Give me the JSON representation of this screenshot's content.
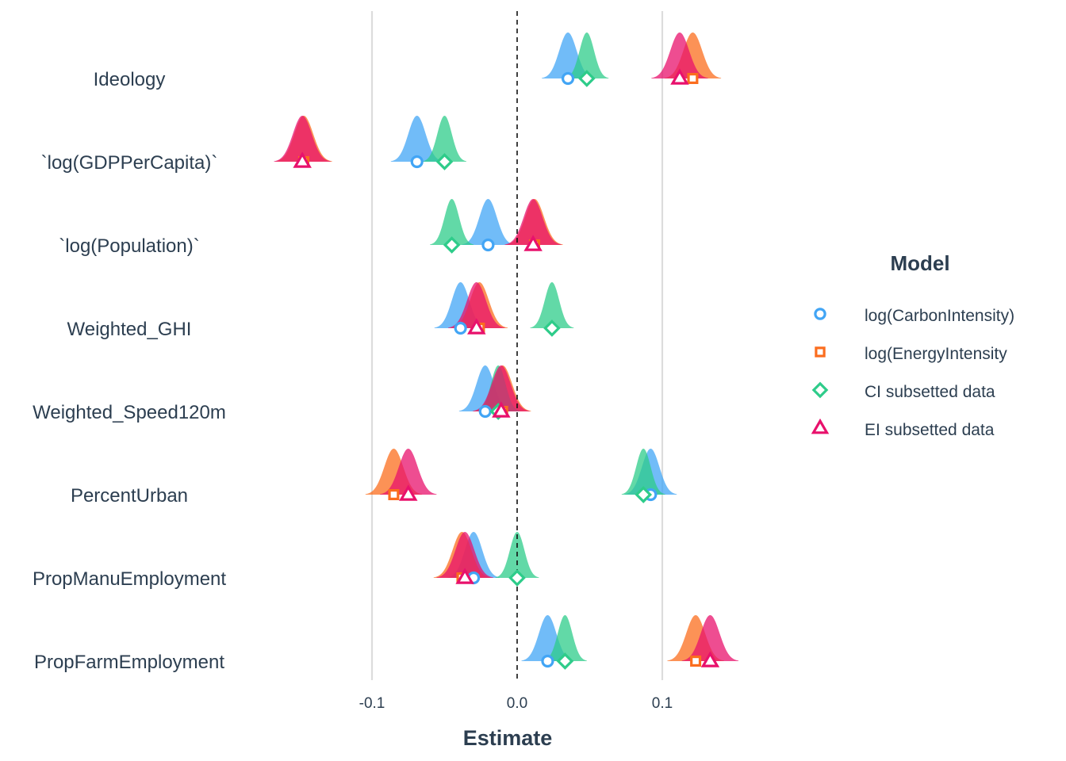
{
  "chart_data": {
    "type": "scatter",
    "subtype": "coefficient-plot-with-density-curves",
    "xlabel": "Estimate",
    "ylabel": "",
    "xlim": [
      -0.1,
      0.1
    ],
    "xticks": [
      -0.1,
      0.0,
      0.1
    ],
    "xtick_labels": [
      "-0.1",
      "0.0",
      "0.1"
    ],
    "reference_line": {
      "x": 0.0,
      "style": "dashed"
    },
    "grid": "vertical major lines only",
    "categories": [
      "Ideology",
      "`log(GDPPerCapita)`",
      "`log(Population)`",
      "Weighted_GHI",
      "Weighted_Speed120m",
      "PercentUrban",
      "PropManuEmployment",
      "PropFarmEmployment"
    ],
    "legend": {
      "title": "Model",
      "position": "right"
    },
    "series": [
      {
        "name": "log(CarbonIntensity)",
        "color": "#42a5f5",
        "marker": "circle",
        "values": [
          0.035,
          -0.069,
          -0.02,
          -0.039,
          -0.022,
          0.092,
          -0.03,
          0.021
        ],
        "sd": [
          0.006,
          0.006,
          0.006,
          0.006,
          0.006,
          0.006,
          0.006,
          0.006
        ]
      },
      {
        "name": "log(EnergyIntensity",
        "color": "#fb6d1e",
        "marker": "square",
        "values": [
          0.121,
          -0.147,
          0.012,
          -0.026,
          -0.01,
          -0.085,
          -0.038,
          0.123
        ],
        "sd": [
          0.0065,
          0.0065,
          0.0065,
          0.0065,
          0.0065,
          0.0065,
          0.0065,
          0.0065
        ]
      },
      {
        "name": "CI subsetted data",
        "color": "#2ecc8a",
        "marker": "diamond",
        "values": [
          0.048,
          -0.05,
          -0.045,
          0.024,
          -0.013,
          0.087,
          0.0,
          0.033
        ],
        "sd": [
          0.005,
          0.005,
          0.005,
          0.005,
          0.005,
          0.005,
          0.005,
          0.005
        ]
      },
      {
        "name": "EI subsetted data",
        "color": "#e8116c",
        "marker": "triangle",
        "values": [
          0.112,
          -0.148,
          0.011,
          -0.028,
          -0.011,
          -0.075,
          -0.036,
          0.133
        ],
        "sd": [
          0.0065,
          0.0065,
          0.0065,
          0.0065,
          0.0065,
          0.0065,
          0.0065,
          0.0065
        ]
      }
    ]
  }
}
